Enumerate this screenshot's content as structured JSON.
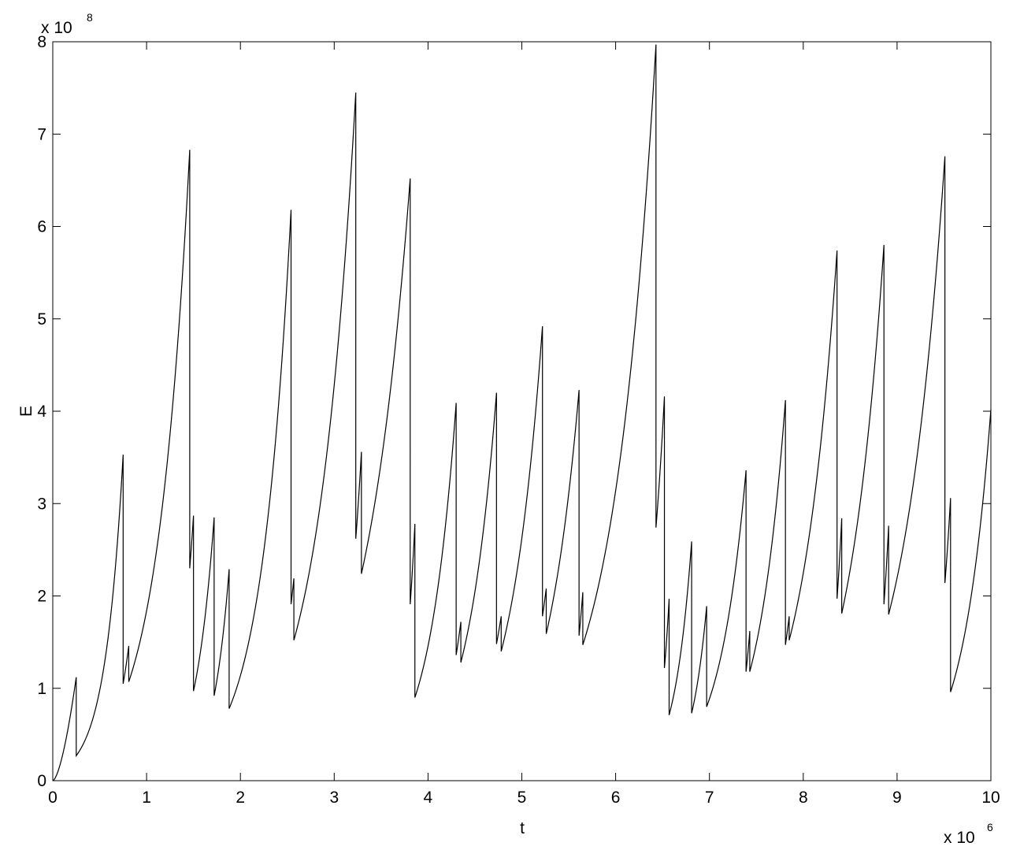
{
  "chart_data": {
    "type": "line",
    "title": "",
    "xlabel": "t",
    "ylabel": "E",
    "x_multiplier": {
      "base": "x 10",
      "exponent": "6"
    },
    "y_multiplier": {
      "base": "x 10",
      "exponent": "8"
    },
    "xlim": [
      0,
      10
    ],
    "ylim": [
      0,
      8
    ],
    "x_ticks": [
      "0",
      "1",
      "2",
      "3",
      "4",
      "5",
      "6",
      "7",
      "8",
      "9",
      "10"
    ],
    "y_ticks": [
      "0",
      "1",
      "2",
      "3",
      "4",
      "5",
      "6",
      "7",
      "8"
    ],
    "grid": false,
    "line_color": "#000000",
    "series": [
      {
        "segments": [
          {
            "x0": 0.0,
            "y0": 0.0,
            "x1": 0.25,
            "y1": 1.12
          },
          {
            "x0": 0.25,
            "y0": 0.27,
            "x1": 0.75,
            "y1": 3.53
          },
          {
            "x0": 0.75,
            "y0": 1.05,
            "x1": 0.81,
            "y1": 1.46
          },
          {
            "x0": 0.81,
            "y0": 1.07,
            "x1": 1.46,
            "y1": 6.83
          },
          {
            "x0": 1.46,
            "y0": 2.3,
            "x1": 1.5,
            "y1": 2.87
          },
          {
            "x0": 1.5,
            "y0": 0.97,
            "x1": 1.72,
            "y1": 2.85
          },
          {
            "x0": 1.72,
            "y0": 0.92,
            "x1": 1.88,
            "y1": 2.29
          },
          {
            "x0": 1.88,
            "y0": 0.78,
            "x1": 2.54,
            "y1": 6.18
          },
          {
            "x0": 2.54,
            "y0": 1.91,
            "x1": 2.57,
            "y1": 2.19
          },
          {
            "x0": 2.57,
            "y0": 1.52,
            "x1": 3.23,
            "y1": 7.45
          },
          {
            "x0": 3.23,
            "y0": 2.62,
            "x1": 3.29,
            "y1": 3.56
          },
          {
            "x0": 3.29,
            "y0": 2.24,
            "x1": 3.81,
            "y1": 6.52
          },
          {
            "x0": 3.81,
            "y0": 1.91,
            "x1": 3.86,
            "y1": 2.78
          },
          {
            "x0": 3.86,
            "y0": 0.9,
            "x1": 4.3,
            "y1": 4.09
          },
          {
            "x0": 4.3,
            "y0": 1.36,
            "x1": 4.35,
            "y1": 1.72
          },
          {
            "x0": 4.35,
            "y0": 1.28,
            "x1": 4.73,
            "y1": 4.2
          },
          {
            "x0": 4.73,
            "y0": 1.48,
            "x1": 4.78,
            "y1": 1.78
          },
          {
            "x0": 4.78,
            "y0": 1.4,
            "x1": 5.22,
            "y1": 4.92
          },
          {
            "x0": 5.22,
            "y0": 1.78,
            "x1": 5.26,
            "y1": 2.08
          },
          {
            "x0": 5.26,
            "y0": 1.59,
            "x1": 5.61,
            "y1": 4.23
          },
          {
            "x0": 5.61,
            "y0": 1.57,
            "x1": 5.65,
            "y1": 2.04
          },
          {
            "x0": 5.65,
            "y0": 1.47,
            "x1": 6.43,
            "y1": 7.97
          },
          {
            "x0": 6.43,
            "y0": 2.74,
            "x1": 6.52,
            "y1": 4.16
          },
          {
            "x0": 6.52,
            "y0": 1.22,
            "x1": 6.57,
            "y1": 1.97
          },
          {
            "x0": 6.57,
            "y0": 0.71,
            "x1": 6.81,
            "y1": 2.59
          },
          {
            "x0": 6.81,
            "y0": 0.73,
            "x1": 6.97,
            "y1": 1.89
          },
          {
            "x0": 6.97,
            "y0": 0.8,
            "x1": 7.39,
            "y1": 3.36
          },
          {
            "x0": 7.39,
            "y0": 1.18,
            "x1": 7.43,
            "y1": 1.62
          },
          {
            "x0": 7.43,
            "y0": 1.18,
            "x1": 7.81,
            "y1": 4.12
          },
          {
            "x0": 7.81,
            "y0": 1.47,
            "x1": 7.85,
            "y1": 1.78
          },
          {
            "x0": 7.85,
            "y0": 1.52,
            "x1": 8.36,
            "y1": 5.74
          },
          {
            "x0": 8.36,
            "y0": 1.97,
            "x1": 8.41,
            "y1": 2.84
          },
          {
            "x0": 8.41,
            "y0": 1.81,
            "x1": 8.86,
            "y1": 5.8
          },
          {
            "x0": 8.86,
            "y0": 1.91,
            "x1": 8.91,
            "y1": 2.76
          },
          {
            "x0": 8.91,
            "y0": 1.8,
            "x1": 9.51,
            "y1": 6.76
          },
          {
            "x0": 9.51,
            "y0": 2.14,
            "x1": 9.57,
            "y1": 3.06
          },
          {
            "x0": 9.57,
            "y0": 0.96,
            "x1": 10.0,
            "y1": 4.02
          }
        ]
      }
    ]
  }
}
